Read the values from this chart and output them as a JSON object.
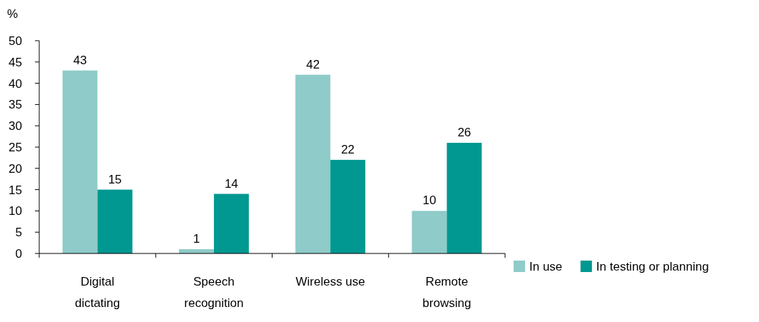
{
  "chart_data": {
    "type": "bar",
    "ylabel": "%",
    "categories": [
      "Digital dictating",
      "Speech recognition",
      "Wireless use",
      "Remote browsing"
    ],
    "series": [
      {
        "name": "In use",
        "color": "#8fcbc8",
        "values": [
          43,
          1,
          42,
          10
        ]
      },
      {
        "name": "In testing or planning",
        "color": "#009891",
        "values": [
          15,
          14,
          22,
          26
        ]
      }
    ],
    "ylim": [
      0,
      50
    ],
    "yticks": [
      0,
      5,
      10,
      15,
      20,
      25,
      30,
      35,
      40,
      45,
      50
    ],
    "data_labels": true,
    "legend": "bottom right",
    "grid": false
  }
}
